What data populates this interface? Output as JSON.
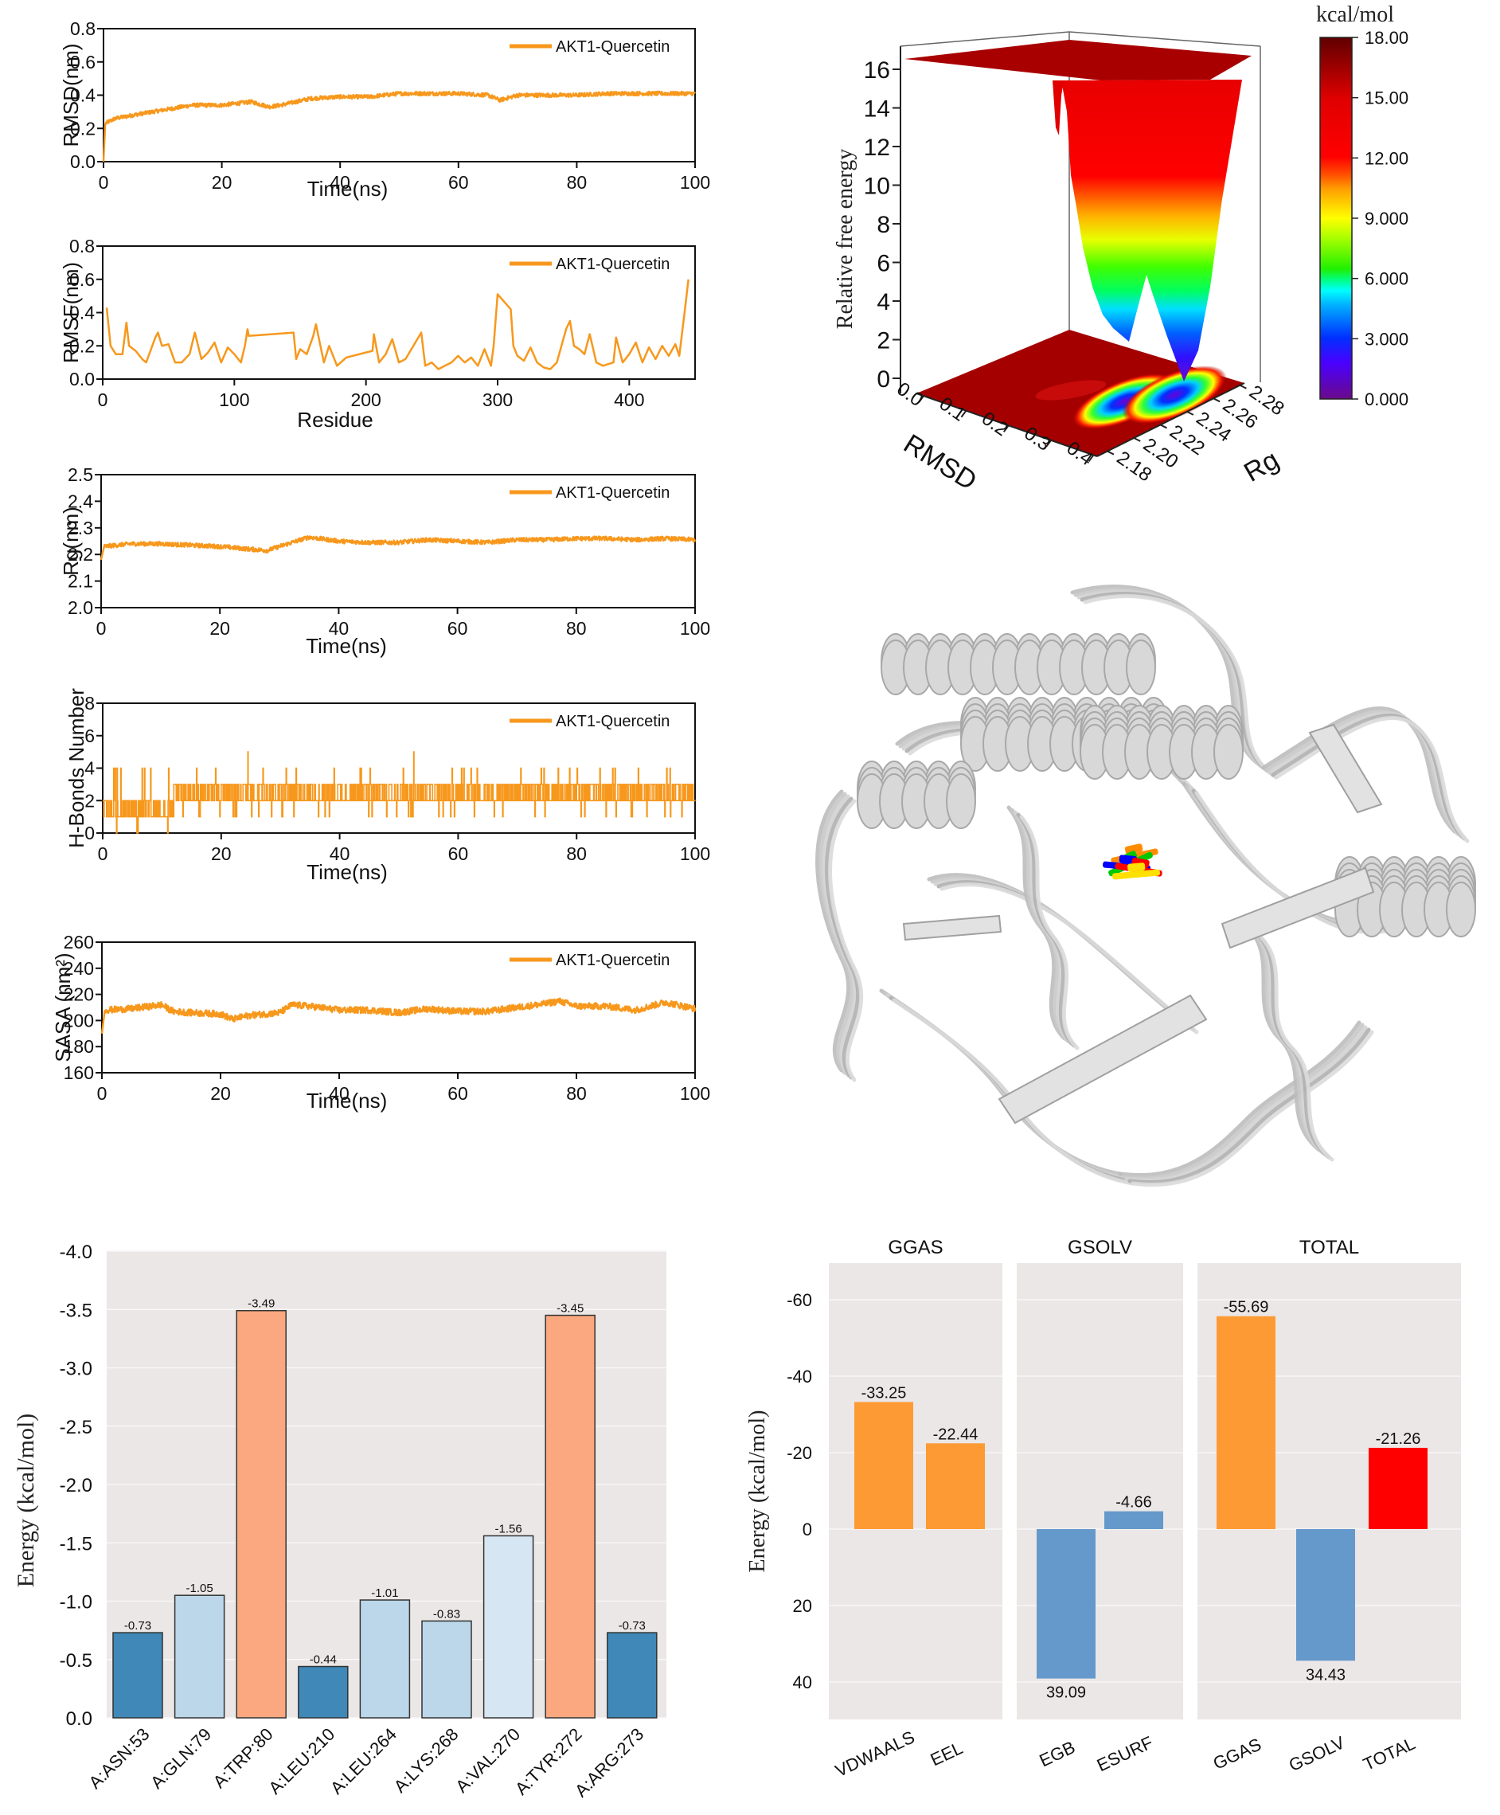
{
  "figure": {
    "series_name": "AKT1-Quercetin",
    "line_color": "#F7981D"
  },
  "chart_data": [
    {
      "id": "rmsd",
      "type": "line",
      "title": "",
      "xlabel": "Time(ns)",
      "ylabel": "RMSD(nm)",
      "xlim": [
        0,
        100
      ],
      "ylim": [
        0.0,
        0.8
      ],
      "xticks": [
        "0",
        "20",
        "40",
        "60",
        "80",
        "100"
      ],
      "yticks": [
        "0.0",
        "0.2",
        "0.4",
        "0.6",
        "0.8"
      ],
      "legend": {
        "position": "top-right",
        "entries": [
          "AKT1-Quercetin"
        ]
      },
      "series": [
        {
          "name": "AKT1-Quercetin",
          "x": [
            0,
            0.3,
            2,
            5,
            10,
            15,
            20,
            25,
            28,
            30,
            35,
            40,
            45,
            50,
            55,
            60,
            65,
            67,
            70,
            75,
            80,
            85,
            90,
            95,
            100
          ],
          "y": [
            0.0,
            0.23,
            0.26,
            0.28,
            0.31,
            0.34,
            0.34,
            0.36,
            0.33,
            0.34,
            0.38,
            0.39,
            0.39,
            0.41,
            0.41,
            0.41,
            0.4,
            0.37,
            0.4,
            0.4,
            0.4,
            0.41,
            0.41,
            0.41,
            0.41
          ]
        }
      ]
    },
    {
      "id": "rmsf",
      "type": "line",
      "title": "",
      "xlabel": "Residue",
      "ylabel": "RMSF(nm)",
      "xlim": [
        0,
        450
      ],
      "ylim": [
        0.0,
        0.8
      ],
      "xticks": [
        "0",
        "100",
        "200",
        "300",
        "400"
      ],
      "yticks": [
        "0.0",
        "0.2",
        "0.4",
        "0.6",
        "0.8"
      ],
      "legend": {
        "position": "top-right",
        "entries": [
          "AKT1-Quercetin"
        ]
      },
      "series": [
        {
          "name": "AKT1-Quercetin",
          "x": [
            3,
            6,
            10,
            15,
            18,
            20,
            25,
            30,
            33,
            40,
            42,
            45,
            50,
            55,
            60,
            66,
            70,
            75,
            80,
            85,
            90,
            95,
            100,
            105,
            108,
            110,
            111,
            145,
            147,
            150,
            155,
            160,
            162,
            168,
            172,
            178,
            185,
            205,
            206,
            210,
            215,
            220,
            225,
            230,
            242,
            245,
            250,
            255,
            260,
            265,
            270,
            275,
            280,
            285,
            290,
            295,
            297,
            300,
            310,
            312,
            315,
            320,
            325,
            330,
            335,
            340,
            345,
            352,
            355,
            358,
            362,
            366,
            370,
            375,
            380,
            388,
            390,
            395,
            400,
            405,
            410,
            415,
            420,
            425,
            430,
            435,
            438,
            442,
            445
          ],
          "y": [
            0.43,
            0.2,
            0.15,
            0.15,
            0.34,
            0.2,
            0.17,
            0.12,
            0.1,
            0.25,
            0.28,
            0.2,
            0.21,
            0.1,
            0.1,
            0.15,
            0.28,
            0.12,
            0.16,
            0.22,
            0.1,
            0.19,
            0.15,
            0.1,
            0.2,
            0.3,
            0.26,
            0.28,
            0.12,
            0.18,
            0.15,
            0.26,
            0.33,
            0.1,
            0.2,
            0.08,
            0.13,
            0.17,
            0.27,
            0.1,
            0.15,
            0.24,
            0.1,
            0.12,
            0.28,
            0.08,
            0.1,
            0.06,
            0.08,
            0.1,
            0.14,
            0.1,
            0.13,
            0.08,
            0.18,
            0.08,
            0.2,
            0.51,
            0.42,
            0.2,
            0.14,
            0.11,
            0.19,
            0.1,
            0.07,
            0.06,
            0.1,
            0.3,
            0.35,
            0.2,
            0.18,
            0.15,
            0.27,
            0.1,
            0.08,
            0.1,
            0.25,
            0.1,
            0.15,
            0.22,
            0.1,
            0.19,
            0.12,
            0.2,
            0.14,
            0.21,
            0.14,
            0.4,
            0.6
          ]
        }
      ]
    },
    {
      "id": "rg",
      "type": "line",
      "title": "",
      "xlabel": "Time(ns)",
      "ylabel": "Rg(nm)",
      "xlim": [
        0,
        100
      ],
      "ylim": [
        2.0,
        2.5
      ],
      "xticks": [
        "0",
        "20",
        "40",
        "60",
        "80",
        "100"
      ],
      "yticks": [
        "2.0",
        "2.1",
        "2.2",
        "2.3",
        "2.4",
        "2.5"
      ],
      "legend": {
        "position": "top-right",
        "entries": [
          "AKT1-Quercetin"
        ]
      },
      "series": [
        {
          "name": "AKT1-Quercetin",
          "x": [
            0,
            0.5,
            5,
            10,
            15,
            20,
            25,
            28,
            30,
            35,
            40,
            45,
            50,
            55,
            60,
            65,
            70,
            75,
            80,
            85,
            90,
            95,
            100
          ],
          "y": [
            2.18,
            2.23,
            2.24,
            2.24,
            2.235,
            2.23,
            2.22,
            2.215,
            2.23,
            2.265,
            2.25,
            2.245,
            2.245,
            2.255,
            2.25,
            2.245,
            2.255,
            2.255,
            2.26,
            2.26,
            2.255,
            2.26,
            2.255
          ]
        }
      ]
    },
    {
      "id": "hbonds",
      "type": "line",
      "title": "",
      "xlabel": "Time(ns)",
      "ylabel": "H-Bonds Number",
      "xlim": [
        0,
        100
      ],
      "ylim": [
        0,
        8
      ],
      "xticks": [
        "0",
        "20",
        "40",
        "60",
        "80",
        "100"
      ],
      "yticks": [
        "0",
        "2",
        "4",
        "6",
        "8"
      ],
      "legend": {
        "position": "top-right",
        "entries": [
          "AKT1-Quercetin"
        ]
      },
      "series": [
        {
          "name": "AKT1-Quercetin",
          "segments": [
            {
              "from": 0,
              "to": 12,
              "typical": [
                1,
                2
              ],
              "min": 0,
              "max": 4
            },
            {
              "from": 12,
              "to": 100,
              "typical": [
                2,
                3
              ],
              "min": 1,
              "max": 5
            }
          ],
          "peaks": [
            {
              "x": 24.5,
              "y": 5
            },
            {
              "x": 52.5,
              "y": 5
            }
          ]
        }
      ]
    },
    {
      "id": "sasa",
      "type": "line",
      "title": "",
      "xlabel": "Time(ns)",
      "ylabel": "SASA (nm²)",
      "xlim": [
        0,
        100
      ],
      "ylim": [
        160,
        260
      ],
      "xticks": [
        "0",
        "20",
        "40",
        "60",
        "80",
        "100"
      ],
      "yticks": [
        "160",
        "180",
        "200",
        "220",
        "240",
        "260"
      ],
      "legend": {
        "position": "top-right",
        "entries": [
          "AKT1-Quercetin"
        ]
      },
      "series": [
        {
          "name": "AKT1-Quercetin",
          "x": [
            0,
            0.5,
            5,
            10,
            12,
            15,
            20,
            22,
            25,
            30,
            32,
            35,
            40,
            45,
            50,
            55,
            60,
            65,
            70,
            75,
            77,
            80,
            85,
            90,
            95,
            100
          ],
          "y": [
            190,
            208,
            209,
            212,
            207,
            206,
            205,
            201,
            204,
            206,
            212,
            211,
            208,
            208,
            206,
            209,
            207,
            207,
            210,
            213,
            215,
            211,
            211,
            208,
            214,
            209
          ]
        }
      ]
    },
    {
      "id": "free-energy-landscape",
      "type": "heatmap",
      "title": "",
      "xlabel": "RMSD",
      "ylabel": "Rg",
      "zlabel": "Relative free energy",
      "xticks": [
        "0.0",
        "0.1",
        "0.2",
        "0.3",
        "0.4"
      ],
      "yticks": [
        "2.18",
        "2.20",
        "2.22",
        "2.24",
        "2.26",
        "2.28"
      ],
      "zticks": [
        "0",
        "2",
        "4",
        "6",
        "8",
        "10",
        "12",
        "14",
        "16"
      ],
      "zlim": [
        0,
        16.5
      ],
      "colorbar": {
        "label": "kcal/mol",
        "ticks": [
          "0.000",
          "3.000",
          "6.000",
          "9.000",
          "12.00",
          "15.00",
          "18.00"
        ],
        "range": [
          0,
          18
        ]
      },
      "minima": [
        {
          "rmsd": 0.28,
          "rg": 2.255,
          "energy": 0.0
        },
        {
          "rmsd": 0.22,
          "rg": 2.245,
          "energy": 1.9
        }
      ]
    },
    {
      "id": "residue-decomposition",
      "type": "bar",
      "title": "",
      "xlabel": "",
      "ylabel": "Energy (kcal/mol)",
      "ylim": [
        0.0,
        -4.0
      ],
      "yticks": [
        "0.0",
        "-0.5",
        "-1.0",
        "-1.5",
        "-2.0",
        "-2.5",
        "-3.0",
        "-3.5",
        "-4.0"
      ],
      "categories": [
        "A:ASN:53",
        "A:GLN:79",
        "A:TRP:80",
        "A:LEU:210",
        "A:LEU:264",
        "A:LYS:268",
        "A:VAL:270",
        "A:TYR:272",
        "A:ARG:273"
      ],
      "values": [
        -0.73,
        -1.05,
        -3.49,
        -0.44,
        -1.01,
        -0.83,
        -1.56,
        -3.45,
        -0.73
      ],
      "labels": [
        "-0.73",
        "-1.05",
        "-3.49",
        "-0.44",
        "-1.01",
        "-0.83",
        "-1.56",
        "-3.45",
        "-0.73"
      ],
      "colors": [
        "#3F88B8",
        "#BCD7EA",
        "#FBA880",
        "#3F88B8",
        "#BCD7EA",
        "#BCD7EA",
        "#D6E6F2",
        "#FBA880",
        "#3F88B8"
      ],
      "grid": true
    },
    {
      "id": "mmgbsa-components",
      "type": "bar",
      "title": "",
      "xlabel": "",
      "ylabel": "Energy (kcal/mol)",
      "ylim": [
        50,
        -70
      ],
      "yticks": [
        "40",
        "20",
        "0",
        "-20",
        "-40",
        "-60"
      ],
      "grid": true,
      "facets": [
        {
          "title": "GGAS",
          "categories": [
            "VDWAALS",
            "EEL"
          ],
          "values": [
            -33.25,
            -22.44
          ],
          "labels": [
            "-33.25",
            "-22.44"
          ],
          "colors": [
            "#FE9A34",
            "#FE9A34"
          ]
        },
        {
          "title": "GSOLV",
          "categories": [
            "EGB",
            "ESURF"
          ],
          "values": [
            39.09,
            -4.66
          ],
          "labels": [
            "39.09",
            "-4.66"
          ],
          "colors": [
            "#6699CB",
            "#6699CB"
          ]
        },
        {
          "title": "TOTAL",
          "categories": [
            "GGAS",
            "GSOLV",
            "TOTAL"
          ],
          "values": [
            -55.69,
            34.43,
            -21.26
          ],
          "labels": [
            "-55.69",
            "34.43",
            "-21.26"
          ],
          "colors": [
            "#FE9A34",
            "#6699CB",
            "#FF0000"
          ]
        }
      ]
    }
  ],
  "structure_image": {
    "caption": "",
    "protein_color": "#C8C8C8",
    "ligand_colors": [
      "#FF8C00",
      "#00C800",
      "#0000FF",
      "#FF0000",
      "#FFE000"
    ]
  }
}
